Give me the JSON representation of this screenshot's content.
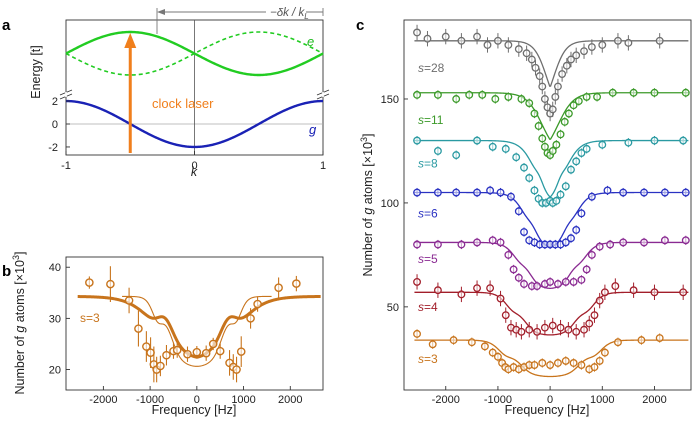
{
  "panels": {
    "a": "a",
    "b": "b",
    "c": "c"
  },
  "chart_data": [
    {
      "id": "a",
      "type": "line",
      "title": "",
      "xlabel": "k",
      "ylabel": "Energy [t]",
      "xlim": [
        -1,
        1
      ],
      "ylim_lower": [
        -2.7,
        2.7
      ],
      "xticks": [
        "-1",
        "0",
        "1"
      ],
      "yticks": [
        "-2",
        "0",
        "2"
      ],
      "series": [
        {
          "name": "g",
          "label": "g",
          "color": "#1a22b5",
          "formula": "-2cos(pi k)",
          "band": "lower"
        },
        {
          "name": "e",
          "label": "e",
          "color": "#22cc22",
          "formula": "cos(pi(k+0.5))",
          "band": "upper",
          "style": "solid"
        },
        {
          "name": "e-shifted",
          "label": "",
          "color": "#22cc22",
          "formula": "cos(pi(k-0.5))",
          "band": "upper",
          "style": "dashed"
        }
      ],
      "annotations": {
        "arrow_label": "clock laser",
        "arrow_color": "#f07f1c",
        "arrow_k": -0.5,
        "shift_label": "−δk / k",
        "shift_subscript": "L"
      }
    },
    {
      "id": "b",
      "type": "scatter",
      "xlabel": "Frequency [Hz]",
      "ylabel_prefix": "Number of",
      "ylabel_var": "g",
      "ylabel_suffix": "atoms [×10",
      "ylabel_exp": "3",
      "ylabel_close": "]",
      "xlim": [
        -2800,
        2700
      ],
      "ylim": [
        16,
        42
      ],
      "xticks": [
        "-2000",
        "-1000",
        "0",
        "1000",
        "2000"
      ],
      "yticks": [
        "20",
        "30",
        "40"
      ],
      "color": "#c8741c",
      "series_label": "s=3",
      "points": [
        {
          "x": -2300,
          "y": 37.0,
          "err": 1.2
        },
        {
          "x": -1850,
          "y": 36.7,
          "err": 3.5
        },
        {
          "x": -1450,
          "y": 33.5,
          "err": 2.5
        },
        {
          "x": -1250,
          "y": 28.0,
          "err": 3.5
        },
        {
          "x": -1080,
          "y": 24.5,
          "err": 3.0
        },
        {
          "x": -990,
          "y": 23.3,
          "err": 3.0
        },
        {
          "x": -920,
          "y": 21.0,
          "err": 3.5
        },
        {
          "x": -860,
          "y": 20.0,
          "err": 2.5
        },
        {
          "x": -780,
          "y": 20.7,
          "err": 2.0
        },
        {
          "x": -650,
          "y": 22.8,
          "err": 2.0
        },
        {
          "x": -500,
          "y": 23.6,
          "err": 1.5
        },
        {
          "x": -420,
          "y": 23.8,
          "err": 1.5
        },
        {
          "x": -200,
          "y": 23.0,
          "err": 1.5
        },
        {
          "x": 0,
          "y": 23.4,
          "err": 1.2
        },
        {
          "x": 200,
          "y": 23.2,
          "err": 1.5
        },
        {
          "x": 350,
          "y": 25.0,
          "err": 1.2
        },
        {
          "x": 500,
          "y": 23.6,
          "err": 1.5
        },
        {
          "x": 700,
          "y": 21.3,
          "err": 2.5
        },
        {
          "x": 780,
          "y": 20.5,
          "err": 2.5
        },
        {
          "x": 850,
          "y": 20.0,
          "err": 2.5
        },
        {
          "x": 950,
          "y": 23.5,
          "err": 3.0
        },
        {
          "x": 1150,
          "y": 30.0,
          "err": 2.0
        },
        {
          "x": 1300,
          "y": 32.8,
          "err": 1.5
        },
        {
          "x": 1750,
          "y": 36.0,
          "err": 2.0
        },
        {
          "x": 2130,
          "y": 36.8,
          "err": 1.5
        }
      ],
      "fit_thick": {
        "baseline": 34.3,
        "edge": 900,
        "width": 280,
        "depth": 11,
        "dip": 2.5
      },
      "fit_thin": {
        "baseline": 34.3,
        "edge": 880,
        "width": 80,
        "depth": 12,
        "dip": 2.8,
        "xlim": [
          -1600,
          1600
        ]
      }
    },
    {
      "id": "c",
      "type": "scatter",
      "xlabel": "Frequency [Hz]",
      "ylabel_prefix": "Number of",
      "ylabel_var": "g",
      "ylabel_suffix": "atoms [×10",
      "ylabel_exp": "3",
      "ylabel_close": "]",
      "xlim": [
        -2800,
        2700
      ],
      "ylim": [
        10,
        188
      ],
      "xticks": [
        "-2000",
        "-1000",
        "0",
        "1000",
        "2000"
      ],
      "yticks": [
        "50",
        "100",
        "150"
      ],
      "series": [
        {
          "label_var": "s",
          "label_val": "=28",
          "color": "#6e6e6e",
          "base": 178,
          "edge": 60,
          "width": 120,
          "depth": 36,
          "dip": 0,
          "label_y": 165,
          "points": [
            [
              -2550,
              182
            ],
            [
              -2350,
              179
            ],
            [
              -2000,
              180
            ],
            [
              -1700,
              178
            ],
            [
              -1400,
              180
            ],
            [
              -1200,
              176
            ],
            [
              -1000,
              178
            ],
            [
              -800,
              176
            ],
            [
              -600,
              174
            ],
            [
              -450,
              172
            ],
            [
              -350,
              169
            ],
            [
              -280,
              165
            ],
            [
              -200,
              161
            ],
            [
              -150,
              156
            ],
            [
              -100,
              150
            ],
            [
              -50,
              146
            ],
            [
              0,
              143
            ],
            [
              50,
              145
            ],
            [
              100,
              151
            ],
            [
              150,
              156
            ],
            [
              230,
              162
            ],
            [
              320,
              166
            ],
            [
              400,
              169
            ],
            [
              500,
              171
            ],
            [
              650,
              173
            ],
            [
              800,
              175
            ],
            [
              1000,
              176
            ],
            [
              1300,
              178
            ],
            [
              1500,
              177
            ],
            [
              2100,
              178
            ]
          ]
        },
        {
          "label_var": "s",
          "label_val": "=11",
          "color": "#3c9a2a",
          "base": 153,
          "edge": 150,
          "width": 150,
          "depth": 31,
          "dip": 0,
          "label_y": 140,
          "points": [
            [
              -2550,
              152
            ],
            [
              -2150,
              152
            ],
            [
              -1800,
              150
            ],
            [
              -1550,
              152
            ],
            [
              -1300,
              152
            ],
            [
              -1050,
              150
            ],
            [
              -800,
              151
            ],
            [
              -550,
              150
            ],
            [
              -400,
              148
            ],
            [
              -300,
              143
            ],
            [
              -220,
              137
            ],
            [
              -150,
              131
            ],
            [
              -100,
              127
            ],
            [
              -50,
              124
            ],
            [
              0,
              123
            ],
            [
              50,
              125
            ],
            [
              120,
              128
            ],
            [
              200,
              133
            ],
            [
              280,
              139
            ],
            [
              360,
              143
            ],
            [
              450,
              147
            ],
            [
              550,
              149
            ],
            [
              700,
              151
            ],
            [
              900,
              151
            ],
            [
              1200,
              153
            ],
            [
              1600,
              153
            ],
            [
              2000,
              153
            ],
            [
              2600,
              153
            ]
          ]
        },
        {
          "label_var": "s",
          "label_val": "=8",
          "color": "#2a9aa2",
          "base": 130,
          "edge": 280,
          "width": 140,
          "depth": 30,
          "dip": 0.6,
          "label_y": 119,
          "points": [
            [
              -2550,
              130
            ],
            [
              -2150,
              125
            ],
            [
              -1800,
              123
            ],
            [
              -1400,
              130
            ],
            [
              -1100,
              127
            ],
            [
              -850,
              126
            ],
            [
              -650,
              122
            ],
            [
              -500,
              117
            ],
            [
              -400,
              112
            ],
            [
              -300,
              106
            ],
            [
              -220,
              102
            ],
            [
              -150,
              100
            ],
            [
              -80,
              100
            ],
            [
              0,
              101
            ],
            [
              50,
              100
            ],
            [
              120,
              101
            ],
            [
              200,
              104
            ],
            [
              300,
              108
            ],
            [
              400,
              116
            ],
            [
              500,
              120
            ],
            [
              600,
              124
            ],
            [
              700,
              126
            ],
            [
              1000,
              128
            ],
            [
              1500,
              129
            ],
            [
              2000,
              130
            ],
            [
              2550,
              130
            ]
          ]
        },
        {
          "label_var": "s",
          "label_val": "=6",
          "color": "#2a32c2",
          "base": 105,
          "edge": 450,
          "width": 130,
          "depth": 26,
          "dip": 0.8,
          "label_y": 95,
          "points": [
            [
              -2550,
              105
            ],
            [
              -2150,
              105
            ],
            [
              -1800,
              105
            ],
            [
              -1400,
              105
            ],
            [
              -1150,
              106
            ],
            [
              -950,
              105
            ],
            [
              -750,
              103
            ],
            [
              -600,
              96
            ],
            [
              -500,
              86
            ],
            [
              -400,
              82
            ],
            [
              -300,
              81
            ],
            [
              -200,
              80
            ],
            [
              -100,
              80
            ],
            [
              0,
              80
            ],
            [
              100,
              80
            ],
            [
              200,
              80
            ],
            [
              300,
              81
            ],
            [
              400,
              83
            ],
            [
              500,
              87
            ],
            [
              600,
              95
            ],
            [
              800,
              103
            ],
            [
              1100,
              106
            ],
            [
              1400,
              105
            ],
            [
              1800,
              105
            ],
            [
              2200,
              105
            ],
            [
              2600,
              105
            ]
          ]
        },
        {
          "label_var": "s",
          "label_val": "=5",
          "color": "#8a2a92",
          "base": 81,
          "edge": 600,
          "width": 120,
          "depth": 21,
          "dip": 1.2,
          "label_y": 73,
          "points": [
            [
              -2550,
              80
            ],
            [
              -2150,
              80
            ],
            [
              -1700,
              80
            ],
            [
              -1400,
              81
            ],
            [
              -1100,
              82
            ],
            [
              -950,
              81
            ],
            [
              -800,
              75
            ],
            [
              -700,
              68
            ],
            [
              -600,
              64
            ],
            [
              -500,
              61
            ],
            [
              -350,
              60
            ],
            [
              -250,
              60
            ],
            [
              -100,
              61
            ],
            [
              0,
              62
            ],
            [
              150,
              61
            ],
            [
              300,
              62
            ],
            [
              450,
              62
            ],
            [
              600,
              63
            ],
            [
              700,
              68
            ],
            [
              800,
              75
            ],
            [
              950,
              79
            ],
            [
              1150,
              80
            ],
            [
              1400,
              81
            ],
            [
              1800,
              81
            ],
            [
              2200,
              82
            ],
            [
              2600,
              82
            ]
          ]
        },
        {
          "label_var": "s",
          "label_val": "=4",
          "color": "#a21e2a",
          "base": 57,
          "edge": 760,
          "width": 110,
          "depth": 19,
          "dip": 1.6,
          "label_y": 50,
          "points": [
            [
              -2550,
              62
            ],
            [
              -2150,
              58
            ],
            [
              -1700,
              56
            ],
            [
              -1400,
              59
            ],
            [
              -1150,
              59
            ],
            [
              -950,
              54
            ],
            [
              -850,
              46
            ],
            [
              -750,
              40
            ],
            [
              -650,
              39
            ],
            [
              -550,
              38
            ],
            [
              -400,
              39
            ],
            [
              -250,
              38
            ],
            [
              -100,
              40
            ],
            [
              50,
              41
            ],
            [
              200,
              40
            ],
            [
              350,
              39
            ],
            [
              500,
              38
            ],
            [
              650,
              39
            ],
            [
              750,
              42
            ],
            [
              850,
              46
            ],
            [
              950,
              53
            ],
            [
              1050,
              57
            ],
            [
              1250,
              60
            ],
            [
              1600,
              58
            ],
            [
              2000,
              57
            ],
            [
              2550,
              57
            ]
          ]
        },
        {
          "label_var": "s",
          "label_val": "=3",
          "color": "#c8741c",
          "base": 34,
          "edge": 900,
          "width": 110,
          "depth": 16,
          "dip": 1.9,
          "label_y": 25,
          "points": [
            [
              -2550,
              37
            ],
            [
              -2250,
              32
            ],
            [
              -1850,
              34
            ],
            [
              -1500,
              33
            ],
            [
              -1250,
              31
            ],
            [
              -1100,
              28
            ],
            [
              -1000,
              26
            ],
            [
              -920,
              23
            ],
            [
              -860,
              21
            ],
            [
              -800,
              20
            ],
            [
              -700,
              21
            ],
            [
              -600,
              20
            ],
            [
              -500,
              21
            ],
            [
              -400,
              22
            ],
            [
              -300,
              22
            ],
            [
              -150,
              23
            ],
            [
              0,
              22
            ],
            [
              150,
              23
            ],
            [
              300,
              24
            ],
            [
              450,
              23
            ],
            [
              600,
              22
            ],
            [
              750,
              20
            ],
            [
              850,
              21
            ],
            [
              950,
              24
            ],
            [
              1050,
              28
            ],
            [
              1300,
              33
            ],
            [
              1750,
              34
            ],
            [
              2100,
              35
            ]
          ]
        }
      ]
    }
  ]
}
